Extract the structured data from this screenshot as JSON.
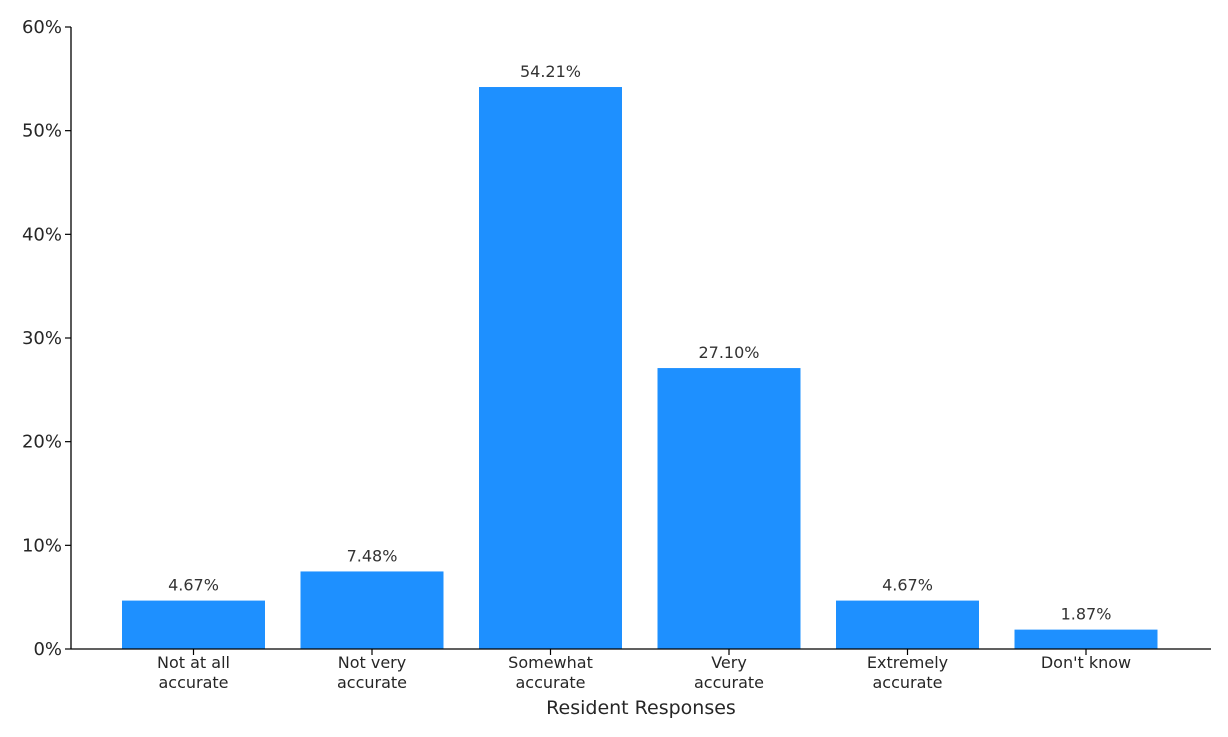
{
  "chart_data": {
    "type": "bar",
    "title": "",
    "xlabel": "Resident Responses",
    "ylabel": "",
    "categories": [
      [
        "Not at all",
        "accurate"
      ],
      [
        "Not very",
        "accurate"
      ],
      [
        "Somewhat",
        "accurate"
      ],
      [
        "Very",
        "accurate"
      ],
      [
        "Extremely",
        "accurate"
      ],
      [
        "Don't know"
      ]
    ],
    "values": [
      4.67,
      7.48,
      54.21,
      27.1,
      4.67,
      1.87
    ],
    "value_labels": [
      "4.67%",
      "7.48%",
      "54.21%",
      "27.10%",
      "4.67%",
      "1.87%"
    ],
    "ylim": [
      0,
      60
    ],
    "yticks": [
      0,
      10,
      20,
      30,
      40,
      50,
      60
    ],
    "ytick_labels": [
      "0%",
      "10%",
      "20%",
      "30%",
      "40%",
      "50%",
      "60%"
    ],
    "bar_color": "#1e90ff",
    "grid": false,
    "legend": "none"
  }
}
